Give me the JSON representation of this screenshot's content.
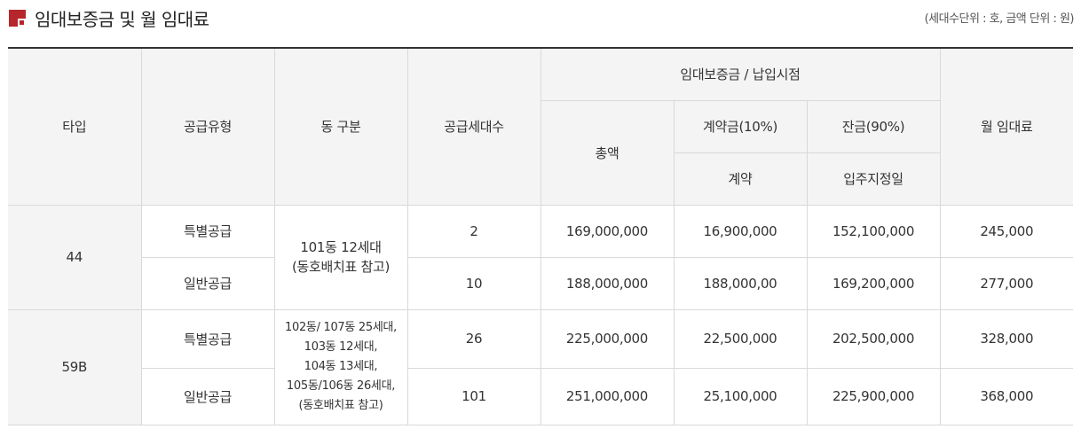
{
  "header": {
    "title": "임대보증금 및 월 임대료",
    "unit_note": "(세대수단위 : 호, 금액 단위 : 원)",
    "icon": "red-square-bullet-icon",
    "accent_color": "#b7262d"
  },
  "table": {
    "headers": {
      "type": "타입",
      "supply_type": "공급유형",
      "dong": "동 구분",
      "households": "공급세대수",
      "deposit_group": "임대보증금 / 납입시점",
      "total": "총액",
      "contract_fee": "계약금(10%)",
      "balance": "잔금(90%)",
      "contract_timing": "계약",
      "balance_timing": "입주지정일",
      "monthly_rent": "월 임대료"
    },
    "rows": [
      {
        "type": "44",
        "dong_lines": [
          "101동 12세대",
          "(동호배치표 참고)"
        ],
        "items": [
          {
            "supply_type": "특별공급",
            "households": "2",
            "total": "169,000,000",
            "contract": "16,900,000",
            "balance": "152,100,000",
            "rent": "245,000"
          },
          {
            "supply_type": "일반공급",
            "households": "10",
            "total": "188,000,000",
            "contract": "188,000,00",
            "balance": "169,200,000",
            "rent": "277,000"
          }
        ]
      },
      {
        "type": "59B",
        "dong_lines": [
          "102동/ 107동 25세대,",
          "103동 12세대,",
          "104동 13세대,",
          "105동/106동 26세대,",
          "(동호배치표 참고)"
        ],
        "items": [
          {
            "supply_type": "특별공급",
            "households": "26",
            "total": "225,000,000",
            "contract": "22,500,000",
            "balance": "202,500,000",
            "rent": "328,000"
          },
          {
            "supply_type": "일반공급",
            "households": "101",
            "total": "251,000,000",
            "contract": "25,100,000",
            "balance": "225,900,000",
            "rent": "368,000"
          }
        ]
      }
    ]
  }
}
